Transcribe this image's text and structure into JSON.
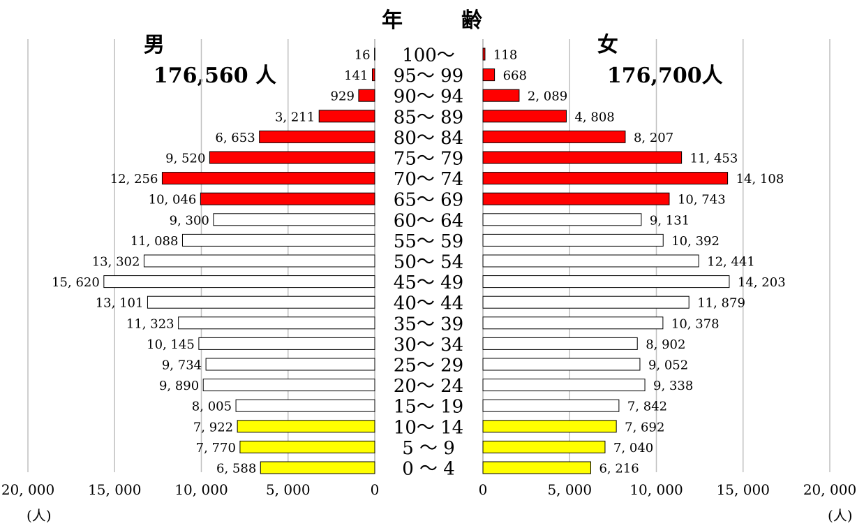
{
  "header": {
    "male_label": "男",
    "male_total": "176,560 人",
    "age_char1": "年",
    "age_char2": "齢",
    "female_label": "女",
    "female_total": "176,700人"
  },
  "units": {
    "left": "(人)",
    "right": "(人)"
  },
  "chart_data": {
    "type": "bar",
    "orientation": "horizontal-pyramid",
    "categories": [
      "100～",
      "95～ 99",
      "90～ 94",
      "85～ 89",
      "80～ 84",
      "75～ 79",
      "70～ 74",
      "65～ 69",
      "60～ 64",
      "55～ 59",
      "50～ 54",
      "45～ 49",
      "40～ 44",
      "35～ 39",
      "30～ 34",
      "25～ 29",
      "20～ 24",
      "15～ 19",
      "10～ 14",
      "5 ～ 9",
      "0 ～ 4"
    ],
    "series": [
      {
        "name": "男",
        "values": [
          16,
          141,
          929,
          3211,
          6653,
          9520,
          12256,
          10046,
          9300,
          11088,
          13302,
          15620,
          13101,
          11323,
          10145,
          9734,
          9890,
          8005,
          7922,
          7770,
          6588
        ],
        "labels": [
          "16",
          "141",
          "929",
          "3, 211",
          "6, 653",
          "9, 520",
          "12, 256",
          "10, 046",
          "9, 300",
          "11, 088",
          "13, 302",
          "15, 620",
          "13, 101",
          "11, 323",
          "10, 145",
          "9, 734",
          "9, 890",
          "8, 005",
          "7, 922",
          "7, 770",
          "6, 588"
        ]
      },
      {
        "name": "女",
        "values": [
          118,
          668,
          2089,
          4808,
          8207,
          11453,
          14108,
          10743,
          9131,
          10392,
          12441,
          14203,
          11879,
          10378,
          8902,
          9052,
          9338,
          7842,
          7692,
          7040,
          6216
        ],
        "labels": [
          "118",
          "668",
          "2, 089",
          "4, 808",
          "8, 207",
          "11, 453",
          "14, 108",
          "10, 743",
          "9, 131",
          "10, 392",
          "12, 441",
          "14, 203",
          "11, 879",
          "10, 378",
          "8, 902",
          "9, 052",
          "9, 338",
          "7, 842",
          "7, 692",
          "7, 040",
          "6, 216"
        ]
      }
    ],
    "age_colors": [
      "#ff0000",
      "#ff0000",
      "#ff0000",
      "#ff0000",
      "#ff0000",
      "#ff0000",
      "#ff0000",
      "#ff0000",
      "#ffffff",
      "#ffffff",
      "#ffffff",
      "#ffffff",
      "#ffffff",
      "#ffffff",
      "#ffffff",
      "#ffffff",
      "#ffffff",
      "#ffffff",
      "#ffff00",
      "#ffff00",
      "#ffff00"
    ],
    "x_ticks": [
      0,
      5000,
      10000,
      15000,
      20000
    ],
    "x_tick_labels_left": [
      "0",
      "5, 000",
      "10, 000",
      "15, 000",
      "20, 000"
    ],
    "x_tick_labels_right": [
      "0",
      "5, 000",
      "10, 000",
      "15, 000",
      "20, 000"
    ],
    "xlim": [
      0,
      20000
    ],
    "grid": true
  }
}
